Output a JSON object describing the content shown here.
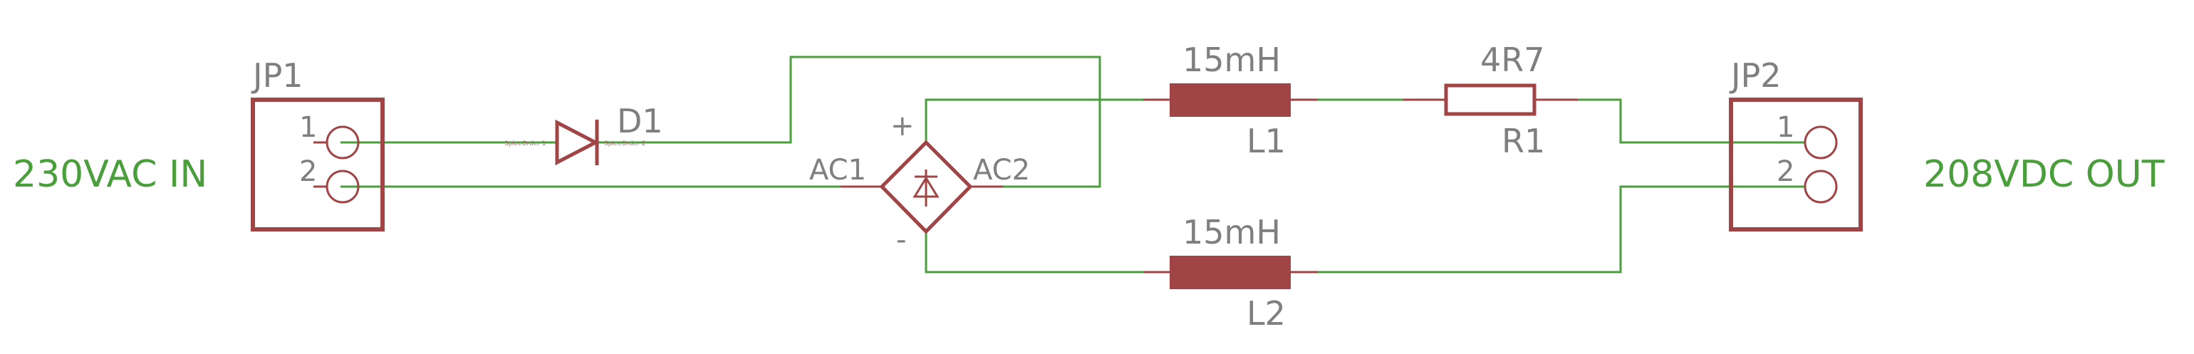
{
  "labels": {
    "input": "230VAC IN",
    "output": "208VDC OUT",
    "jp1": "JP1",
    "jp2": "JP2",
    "jp1_pin1": "1",
    "jp1_pin2": "2",
    "jp2_pin1": "1",
    "jp2_pin2": "2",
    "d1": "D1",
    "d1_pin_a": "SpiceOrder 1",
    "d1_pin_c": "SpiceOrder 2",
    "bridge_ac1": "AC1",
    "bridge_ac2": "AC2",
    "bridge_plus": "+",
    "bridge_minus": "-",
    "l1_value": "15mH",
    "l1_name": "L1",
    "l2_value": "15mH",
    "l2_name": "L2",
    "r1_value": "4R7",
    "r1_name": "R1"
  },
  "colors": {
    "wire": "#4a9e3c",
    "symbol": "#a04446",
    "label": "#7f7f7f",
    "net_label": "#4a9e3c"
  }
}
